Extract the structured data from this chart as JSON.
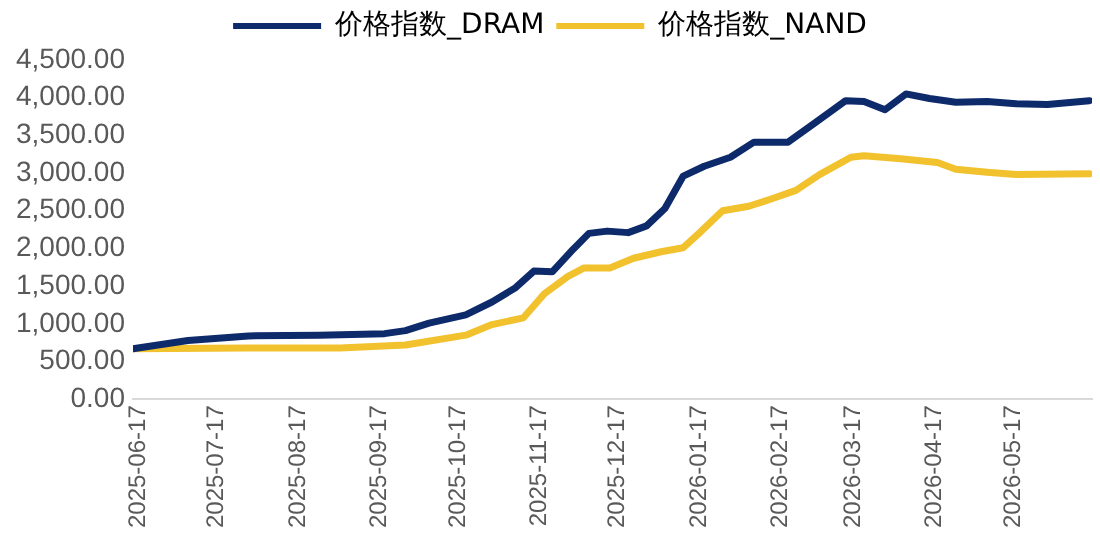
{
  "chart_data": {
    "type": "line",
    "legend": "top",
    "grid": false,
    "marker": "none",
    "line_style": "solid",
    "xlim": [
      "2025-06-15",
      "2026-06-16"
    ],
    "xticks": [
      "2025-06-17",
      "2025-07-17",
      "2025-08-17",
      "2025-09-17",
      "2025-10-17",
      "2025-11-17",
      "2025-12-17",
      "2026-01-17",
      "2026-02-17",
      "2026-03-17",
      "2026-04-17",
      "2026-05-17"
    ],
    "ylim": [
      0,
      4500
    ],
    "yticks": [
      {
        "value": 0,
        "label": "0.00"
      },
      {
        "value": 500,
        "label": "500.00"
      },
      {
        "value": 1000,
        "label": "1,000.00"
      },
      {
        "value": 1500,
        "label": "1,500.00"
      },
      {
        "value": 2000,
        "label": "2,000.00"
      },
      {
        "value": 2500,
        "label": "2,500.00"
      },
      {
        "value": 3000,
        "label": "3,000.00"
      },
      {
        "value": 3500,
        "label": "3,500.00"
      },
      {
        "value": 4000,
        "label": "4,000.00"
      },
      {
        "value": 4500,
        "label": "4,500.00"
      }
    ],
    "series": [
      {
        "name": "价格指数_DRAM",
        "color": "#0d2a6b",
        "x": [
          "2025-06-15",
          "2025-07-06",
          "2025-07-29",
          "2025-08-25",
          "2025-09-19",
          "2025-09-27",
          "2025-10-06",
          "2025-10-20",
          "2025-10-30",
          "2025-11-08",
          "2025-11-15",
          "2025-11-22",
          "2025-11-30",
          "2025-12-06",
          "2025-12-13",
          "2025-12-21",
          "2025-12-28",
          "2026-01-04",
          "2026-01-11",
          "2026-01-19",
          "2026-01-29",
          "2026-02-07",
          "2026-02-20",
          "2026-03-02",
          "2026-03-14",
          "2026-03-21",
          "2026-03-29",
          "2026-04-06",
          "2026-04-15",
          "2026-04-25",
          "2026-05-07",
          "2026-05-18",
          "2026-05-30",
          "2026-06-15"
        ],
        "values": [
          670,
          780,
          840,
          850,
          870,
          910,
          1010,
          1120,
          1290,
          1480,
          1700,
          1690,
          1990,
          2200,
          2230,
          2210,
          2300,
          2530,
          2960,
          3090,
          3210,
          3410,
          3410,
          3660,
          3960,
          3950,
          3840,
          4050,
          3990,
          3940,
          3950,
          3920,
          3910,
          3960
        ]
      },
      {
        "name": "价格指数_NAND",
        "color": "#f2c12e",
        "x": [
          "2025-06-15",
          "2025-07-29",
          "2025-09-02",
          "2025-09-27",
          "2025-10-20",
          "2025-10-30",
          "2025-11-11",
          "2025-11-19",
          "2025-11-28",
          "2025-12-04",
          "2025-12-14",
          "2025-12-23",
          "2026-01-03",
          "2026-01-11",
          "2026-01-17",
          "2026-01-26",
          "2026-02-05",
          "2026-02-13",
          "2026-02-23",
          "2026-03-04",
          "2026-03-16",
          "2026-03-21",
          "2026-04-04",
          "2026-04-18",
          "2026-04-25",
          "2026-05-07",
          "2026-05-18",
          "2026-06-15"
        ],
        "values": [
          670,
          680,
          680,
          720,
          850,
          990,
          1080,
          1400,
          1630,
          1740,
          1740,
          1870,
          1960,
          2010,
          2200,
          2500,
          2560,
          2650,
          2770,
          2980,
          3210,
          3230,
          3190,
          3140,
          3050,
          3010,
          2980,
          2990
        ]
      }
    ]
  }
}
